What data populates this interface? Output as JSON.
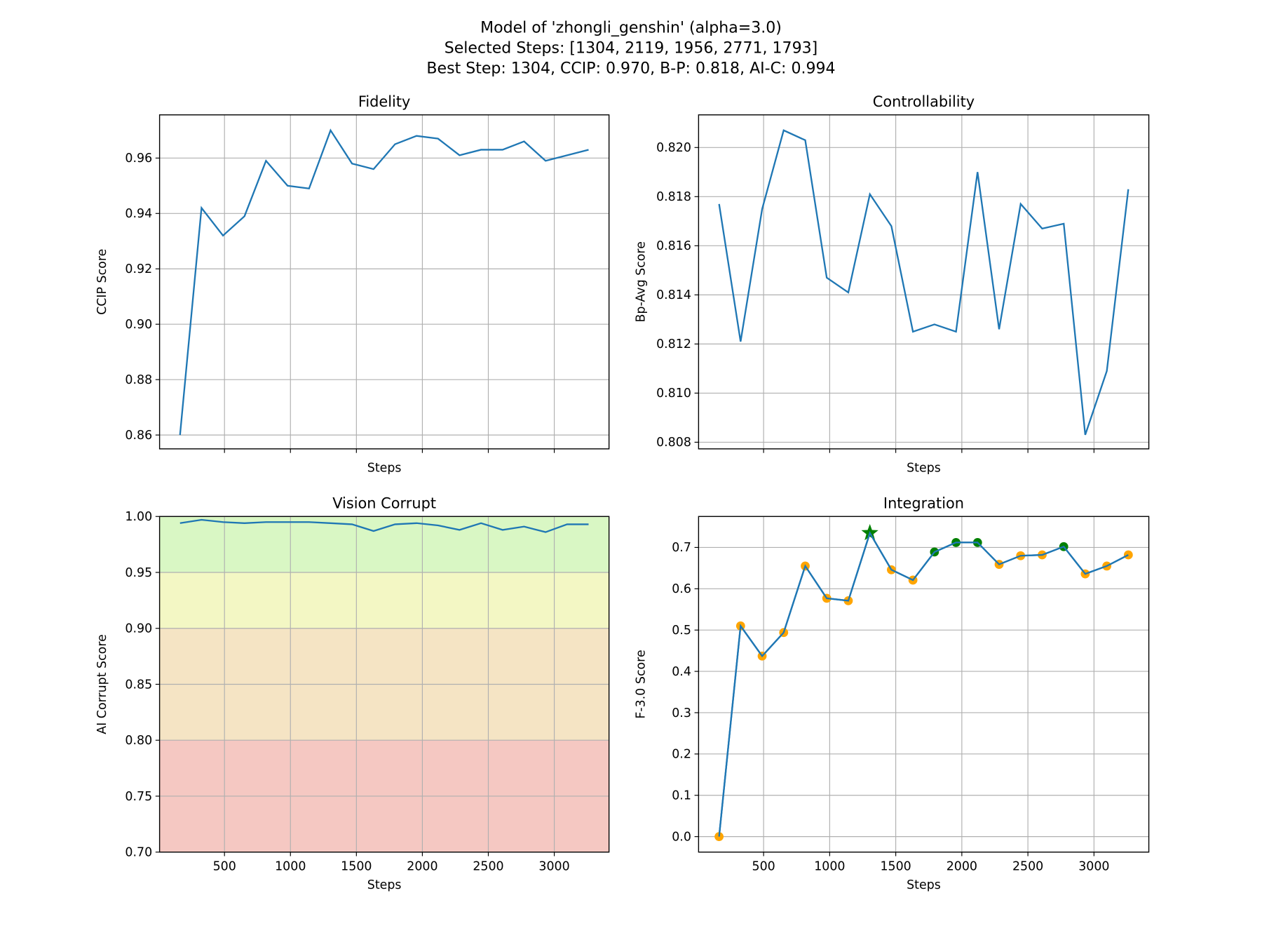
{
  "title_lines": [
    "Model of 'zhongli_genshin' (alpha=3.0)",
    "Selected Steps: [1304, 2119, 1956, 2771, 1793]",
    "Best Step: 1304, CCIP: 0.970, B-P: 0.818, AI-C: 0.994"
  ],
  "chart_data": [
    {
      "type": "line",
      "title": "Fidelity",
      "xlabel": "Steps",
      "ylabel": "CCIP Score",
      "xlim": [
        8,
        3415
      ],
      "ylim": [
        0.855,
        0.9756
      ],
      "grid": true,
      "show_xticklabels": false,
      "xticks": [
        500,
        1000,
        1500,
        2000,
        2500,
        3000
      ],
      "yticks": [
        0.86,
        0.88,
        0.9,
        0.92,
        0.94,
        0.96
      ],
      "ytick_labels": [
        "0.86",
        "0.88",
        "0.90",
        "0.92",
        "0.94",
        "0.96"
      ],
      "x": [
        163,
        326,
        489,
        652,
        815,
        978,
        1141,
        1304,
        1467,
        1630,
        1793,
        1956,
        2119,
        2282,
        2445,
        2608,
        2771,
        2934,
        3097,
        3260
      ],
      "y": [
        0.86,
        0.942,
        0.932,
        0.939,
        0.959,
        0.95,
        0.949,
        0.97,
        0.958,
        0.956,
        0.965,
        0.968,
        0.967,
        0.961,
        0.963,
        0.963,
        0.966,
        0.959,
        0.961,
        0.963
      ],
      "line_color": "#1f77b4"
    },
    {
      "type": "line",
      "title": "Controllability",
      "xlabel": "Steps",
      "ylabel": "Bp-Avg Score",
      "xlim": [
        8,
        3415
      ],
      "ylim": [
        0.80773,
        0.82133
      ],
      "grid": true,
      "show_xticklabels": false,
      "xticks": [
        500,
        1000,
        1500,
        2000,
        2500,
        3000
      ],
      "yticks": [
        0.808,
        0.81,
        0.812,
        0.814,
        0.816,
        0.818,
        0.82
      ],
      "ytick_labels": [
        "0.808",
        "0.810",
        "0.812",
        "0.814",
        "0.816",
        "0.818",
        "0.820"
      ],
      "x": [
        163,
        326,
        489,
        652,
        815,
        978,
        1141,
        1304,
        1467,
        1630,
        1793,
        1956,
        2119,
        2282,
        2445,
        2608,
        2771,
        2934,
        3097,
        3260
      ],
      "y": [
        0.8177,
        0.8121,
        0.8175,
        0.8207,
        0.8203,
        0.8147,
        0.8141,
        0.8181,
        0.8168,
        0.8125,
        0.8128,
        0.8125,
        0.819,
        0.8126,
        0.8177,
        0.8167,
        0.8169,
        0.8083,
        0.8109,
        0.8183
      ],
      "line_color": "#1f77b4"
    },
    {
      "type": "line",
      "title": "Vision Corrupt",
      "xlabel": "Steps",
      "ylabel": "AI Corrupt Score",
      "xlim": [
        8,
        3415
      ],
      "ylim": [
        0.7,
        1.0
      ],
      "grid": true,
      "show_xticklabels": true,
      "xticks": [
        500,
        1000,
        1500,
        2000,
        2500,
        3000
      ],
      "xtick_labels": [
        "500",
        "1000",
        "1500",
        "2000",
        "2500",
        "3000"
      ],
      "yticks": [
        0.7,
        0.75,
        0.8,
        0.85,
        0.9,
        0.95,
        1.0
      ],
      "ytick_labels": [
        "0.70",
        "0.75",
        "0.80",
        "0.85",
        "0.90",
        "0.95",
        "1.00"
      ],
      "bands": [
        {
          "from": 0.95,
          "to": 1.0,
          "color": "#d9f7c4"
        },
        {
          "from": 0.9,
          "to": 0.95,
          "color": "#f3f7c4"
        },
        {
          "from": 0.8,
          "to": 0.9,
          "color": "#f5e4c4"
        },
        {
          "from": 0.7,
          "to": 0.8,
          "color": "#f5c8c2"
        }
      ],
      "x": [
        163,
        326,
        489,
        652,
        815,
        978,
        1141,
        1304,
        1467,
        1630,
        1793,
        1956,
        2119,
        2282,
        2445,
        2608,
        2771,
        2934,
        3097,
        3260
      ],
      "y": [
        0.994,
        0.997,
        0.995,
        0.994,
        0.995,
        0.995,
        0.995,
        0.994,
        0.993,
        0.987,
        0.993,
        0.994,
        0.992,
        0.988,
        0.994,
        0.988,
        0.991,
        0.986,
        0.993,
        0.993
      ],
      "line_color": "#1f77b4"
    },
    {
      "type": "line",
      "title": "Integration",
      "xlabel": "Steps",
      "ylabel": "F-3.0 Score",
      "xlim": [
        8,
        3415
      ],
      "ylim": [
        -0.0375,
        0.775
      ],
      "grid": true,
      "show_xticklabels": true,
      "xticks": [
        500,
        1000,
        1500,
        2000,
        2500,
        3000
      ],
      "xtick_labels": [
        "500",
        "1000",
        "1500",
        "2000",
        "2500",
        "3000"
      ],
      "yticks": [
        0,
        0.1,
        0.2,
        0.3,
        0.4,
        0.5,
        0.6,
        0.7
      ],
      "ytick_labels": [
        "0.0",
        "0.1",
        "0.2",
        "0.3",
        "0.4",
        "0.5",
        "0.6",
        "0.7"
      ],
      "x": [
        163,
        326,
        489,
        652,
        815,
        978,
        1141,
        1304,
        1467,
        1630,
        1793,
        1956,
        2119,
        2282,
        2445,
        2608,
        2771,
        2934,
        3097,
        3260
      ],
      "y": [
        0.0,
        0.51,
        0.437,
        0.494,
        0.655,
        0.577,
        0.571,
        0.735,
        0.646,
        0.621,
        0.689,
        0.712,
        0.712,
        0.659,
        0.68,
        0.682,
        0.702,
        0.636,
        0.655,
        0.682
      ],
      "markers": [
        "o",
        "o",
        "o",
        "o",
        "o",
        "o",
        "o",
        "star",
        "o",
        "o",
        "sel",
        "sel",
        "sel",
        "o",
        "o",
        "o",
        "sel",
        "o",
        "o",
        "o"
      ],
      "line_color": "#1f77b4",
      "marker_color": "#ffa500",
      "selected_color": "#008000",
      "best_color": "#008000"
    }
  ]
}
